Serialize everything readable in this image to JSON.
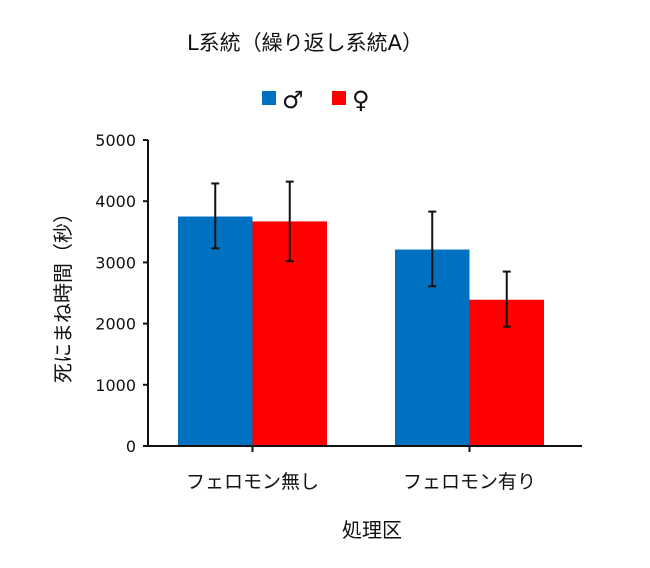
{
  "chart_data": {
    "type": "bar",
    "title": "L系統（繰り返し系統A）",
    "xlabel": "処理区",
    "ylabel": "死にまね時間（秒）",
    "categories": [
      "フェロモン無し",
      "フェロモン有り"
    ],
    "ylim": [
      0,
      5000
    ],
    "yticks": [
      0,
      1000,
      2000,
      3000,
      4000,
      5000
    ],
    "grid": false,
    "legend_position": "top",
    "series": [
      {
        "name": "♂",
        "color": "#0070C0",
        "values": [
          3750,
          3210
        ],
        "error_low": [
          3230,
          2610
        ],
        "error_high": [
          4290,
          3830
        ]
      },
      {
        "name": "♀",
        "color": "#FF0000",
        "values": [
          3670,
          2390
        ],
        "error_low": [
          3020,
          1950
        ],
        "error_high": [
          4320,
          2850
        ]
      }
    ]
  }
}
